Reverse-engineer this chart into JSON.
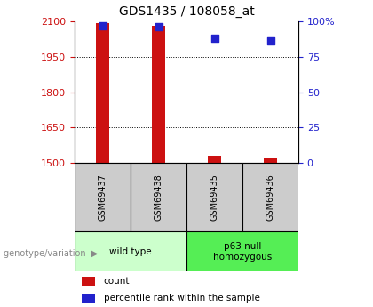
{
  "title": "GDS1435 / 108058_at",
  "samples": [
    "GSM69437",
    "GSM69438",
    "GSM69435",
    "GSM69436"
  ],
  "counts": [
    2093,
    2082,
    1530,
    1518
  ],
  "percentiles": [
    97,
    96,
    88,
    86
  ],
  "ylim_left": [
    1500,
    2100
  ],
  "ylim_right": [
    0,
    100
  ],
  "yticks_left": [
    1500,
    1650,
    1800,
    1950,
    2100
  ],
  "yticks_right": [
    0,
    25,
    50,
    75,
    100
  ],
  "yticklabels_right": [
    "0",
    "25",
    "50",
    "75",
    "100%"
  ],
  "bar_color": "#cc1111",
  "dot_color": "#2222cc",
  "groups": [
    {
      "label": "wild type",
      "samples": [
        0,
        1
      ],
      "color": "#ccffcc"
    },
    {
      "label": "p63 null\nhomozygous",
      "samples": [
        2,
        3
      ],
      "color": "#55ee55"
    }
  ],
  "group_label": "genotype/variation",
  "legend_items": [
    {
      "label": "count",
      "color": "#cc1111"
    },
    {
      "label": "percentile rank within the sample",
      "color": "#2222cc"
    }
  ],
  "sample_box_color": "#cccccc",
  "left_color": "#cc1111",
  "right_color": "#2222cc",
  "bar_width": 0.25
}
